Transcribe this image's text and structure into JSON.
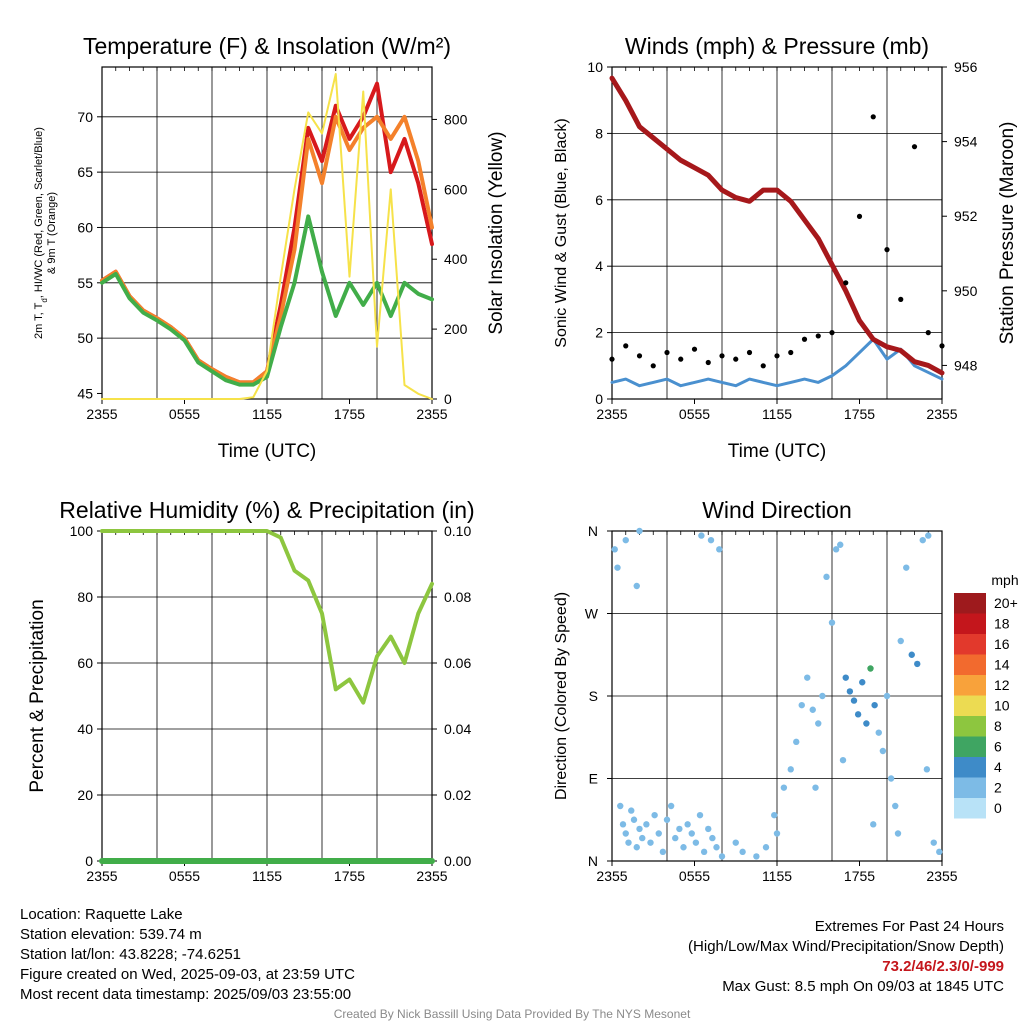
{
  "chart_data": [
    {
      "type": "line",
      "title": "Temperature (F) & Insolation (W/m²)",
      "xlabel": "Time (UTC)",
      "ylabel": "2m T, Td, HI/WC (Red, Green, Scarlet/Blue) & 9m T (Orange)",
      "ylabel_line1": "2m T, T",
      "ylabel_sub": "d",
      "ylabel_line1b": ", HI/WC (Red, Green, Scarlet/Blue)",
      "ylabel_line2": "& 9m T (Orange)",
      "y2label": "Solar Insolation (Yellow)",
      "x_ticks": [
        "2355",
        "0555",
        "1155",
        "1755",
        "2355"
      ],
      "ylim": [
        44.5,
        74.5
      ],
      "y_ticks": [
        45,
        50,
        55,
        60,
        65,
        70
      ],
      "y2lim": [
        0,
        950
      ],
      "y2_ticks": [
        0,
        200,
        400,
        600,
        800
      ],
      "grid": true,
      "x_hours": [
        0,
        1,
        2,
        3,
        4,
        5,
        6,
        7,
        8,
        9,
        10,
        11,
        12,
        13,
        14,
        15,
        16,
        17,
        18,
        19,
        20,
        21,
        22,
        23,
        24
      ],
      "series": [
        {
          "name": "2m T",
          "color": "#d7191c",
          "values": [
            55.2,
            56,
            53.8,
            52.5,
            51.8,
            51,
            50,
            48,
            47.2,
            46.5,
            46,
            46,
            47,
            53,
            60,
            69,
            66,
            71,
            68,
            70,
            73,
            65,
            68,
            64,
            58.5
          ]
        },
        {
          "name": "9m T",
          "color": "#f4812b",
          "values": [
            55.2,
            56,
            53.8,
            52.5,
            51.8,
            51,
            50,
            48,
            47.2,
            46.5,
            46,
            46,
            47,
            52,
            58,
            68,
            64,
            70,
            67,
            69,
            70,
            68,
            70,
            66,
            60
          ]
        },
        {
          "name": "Td",
          "color": "#41ad49",
          "values": [
            55,
            55.8,
            53.6,
            52.3,
            51.6,
            50.8,
            49.8,
            47.8,
            47,
            46.2,
            45.8,
            45.8,
            46.5,
            51,
            55,
            61,
            56,
            52,
            55,
            53,
            55,
            52,
            55,
            54,
            53.5
          ]
        },
        {
          "name": "Solar Insolation",
          "color": "#f6e24a",
          "axis": "y2",
          "values": [
            0,
            0,
            0,
            0,
            0,
            0,
            0,
            0,
            0,
            0,
            0,
            5,
            80,
            350,
            600,
            820,
            760,
            930,
            350,
            880,
            150,
            600,
            40,
            15,
            0
          ]
        }
      ]
    },
    {
      "type": "line",
      "title": "Winds (mph) & Pressure (mb)",
      "xlabel": "Time (UTC)",
      "ylabel": "Sonic Wind & Gust (Blue, Black)",
      "y2label": "Station Pressure (Maroon)",
      "x_ticks": [
        "2355",
        "0555",
        "1155",
        "1755",
        "2355"
      ],
      "ylim": [
        0,
        10
      ],
      "y_ticks": [
        0,
        2,
        4,
        6,
        8,
        10
      ],
      "y2lim": [
        947.1,
        956
      ],
      "y2_ticks": [
        948,
        950,
        952,
        954,
        956
      ],
      "grid": true,
      "x_hours": [
        0,
        1,
        2,
        3,
        4,
        5,
        6,
        7,
        8,
        9,
        10,
        11,
        12,
        13,
        14,
        15,
        16,
        17,
        18,
        19,
        20,
        21,
        22,
        23,
        24
      ],
      "series": [
        {
          "name": "Sonic Wind",
          "color": "#4a90cf",
          "values": [
            0.5,
            0.6,
            0.4,
            0.5,
            0.6,
            0.4,
            0.5,
            0.6,
            0.5,
            0.4,
            0.6,
            0.5,
            0.4,
            0.5,
            0.6,
            0.5,
            0.7,
            1.0,
            1.4,
            1.8,
            1.2,
            1.5,
            1.0,
            0.8,
            0.6
          ]
        },
        {
          "name": "Station Pressure",
          "color": "#a6181b",
          "axis": "y2",
          "values": [
            955.7,
            955.1,
            954.4,
            954.1,
            953.8,
            953.5,
            953.3,
            953.1,
            952.7,
            952.5,
            952.4,
            952.7,
            952.7,
            952.4,
            951.9,
            951.4,
            950.7,
            950.0,
            949.2,
            948.7,
            948.5,
            948.4,
            948.1,
            948.0,
            947.8
          ]
        },
        {
          "name": "Gust",
          "color": "#000000",
          "values": [
            1.2,
            1.6,
            1.3,
            1.0,
            1.4,
            1.2,
            1.5,
            1.1,
            1.3,
            1.2,
            1.4,
            1.0,
            1.3,
            1.4,
            1.8,
            1.9,
            2.0,
            3.5,
            5.5,
            8.5,
            4.5,
            3.0,
            7.6,
            2.0,
            1.6
          ]
        }
      ]
    },
    {
      "type": "line",
      "title": "Relative Humidity (%) & Precipitation (in)",
      "ylabel": "Percent & Precipitation",
      "x_ticks": [
        "2355",
        "0555",
        "1155",
        "1755",
        "2355"
      ],
      "ylim": [
        0,
        100
      ],
      "y_ticks": [
        0,
        20,
        40,
        60,
        80,
        100
      ],
      "y2lim": [
        0,
        0.1
      ],
      "y2_ticks": [
        "0.00",
        "0.02",
        "0.04",
        "0.06",
        "0.08",
        "0.10"
      ],
      "grid": true,
      "x_hours": [
        0,
        1,
        2,
        3,
        4,
        5,
        6,
        7,
        8,
        9,
        10,
        11,
        12,
        13,
        14,
        15,
        16,
        17,
        18,
        19,
        20,
        21,
        22,
        23,
        24
      ],
      "series": [
        {
          "name": "Relative Humidity",
          "color": "#8dc63f",
          "values": [
            100,
            100,
            100,
            100,
            100,
            100,
            100,
            100,
            100,
            100,
            100,
            100,
            100,
            98,
            88,
            85,
            75,
            52,
            55,
            48,
            62,
            68,
            60,
            75,
            84
          ]
        },
        {
          "name": "Precipitation",
          "color": "#41ad49",
          "axis": "y2",
          "values": [
            0,
            0,
            0,
            0,
            0,
            0,
            0,
            0,
            0,
            0,
            0,
            0,
            0,
            0,
            0,
            0,
            0,
            0,
            0,
            0,
            0,
            0,
            0,
            0,
            0
          ]
        }
      ]
    },
    {
      "type": "scatter",
      "title": "Wind Direction",
      "ylabel": "Direction (Colored By Speed)",
      "x_ticks": [
        "2355",
        "0555",
        "1155",
        "1755",
        "2355"
      ],
      "y_ticks": [
        "N",
        "E",
        "S",
        "W",
        "N"
      ],
      "ylim": [
        0,
        360
      ],
      "colorbar": {
        "title": "mph",
        "labels": [
          "20+",
          "18",
          "16",
          "14",
          "12",
          "10",
          "8",
          "6",
          "4",
          "2",
          "0"
        ],
        "colors": [
          "#9e1a1d",
          "#c4161c",
          "#e2392c",
          "#f26a2e",
          "#f8a23b",
          "#ecdb52",
          "#8dc63f",
          "#3fa562",
          "#3e8bc8",
          "#7dbbe6",
          "#b8e2f7"
        ]
      },
      "points": [
        [
          0.2,
          340,
          1
        ],
        [
          0.4,
          320,
          1
        ],
        [
          0.6,
          60,
          1
        ],
        [
          0.8,
          40,
          1
        ],
        [
          1.0,
          30,
          1
        ],
        [
          1.2,
          20,
          1
        ],
        [
          1.4,
          55,
          1
        ],
        [
          1.6,
          45,
          1
        ],
        [
          1.8,
          15,
          1
        ],
        [
          2.0,
          35,
          1
        ],
        [
          2.2,
          25,
          1
        ],
        [
          2.5,
          40,
          1
        ],
        [
          2.8,
          20,
          1
        ],
        [
          3.1,
          50,
          1
        ],
        [
          3.4,
          30,
          1
        ],
        [
          3.7,
          10,
          1
        ],
        [
          4.0,
          45,
          1
        ],
        [
          4.3,
          60,
          1
        ],
        [
          4.6,
          25,
          1
        ],
        [
          4.9,
          35,
          1
        ],
        [
          5.2,
          15,
          1
        ],
        [
          5.5,
          40,
          1
        ],
        [
          5.8,
          30,
          1
        ],
        [
          6.1,
          20,
          1
        ],
        [
          6.4,
          50,
          1
        ],
        [
          6.7,
          10,
          1
        ],
        [
          7.0,
          35,
          1
        ],
        [
          7.3,
          25,
          1
        ],
        [
          7.6,
          15,
          1
        ],
        [
          8.0,
          5,
          1
        ],
        [
          2.0,
          360,
          1
        ],
        [
          1.0,
          350,
          1
        ],
        [
          1.8,
          300,
          1
        ],
        [
          6.5,
          355,
          1
        ],
        [
          7.2,
          350,
          1
        ],
        [
          7.8,
          340,
          1
        ],
        [
          9.0,
          20,
          1
        ],
        [
          9.5,
          10,
          1
        ],
        [
          10.5,
          5,
          1
        ],
        [
          11.2,
          15,
          1
        ],
        [
          12.0,
          30,
          1
        ],
        [
          12.5,
          80,
          1
        ],
        [
          13.0,
          100,
          1
        ],
        [
          13.4,
          130,
          1
        ],
        [
          13.8,
          170,
          1
        ],
        [
          14.2,
          200,
          1
        ],
        [
          14.6,
          165,
          1
        ],
        [
          15.0,
          150,
          1
        ],
        [
          15.3,
          180,
          1
        ],
        [
          15.6,
          310,
          1
        ],
        [
          16.0,
          260,
          1
        ],
        [
          16.3,
          340,
          1
        ],
        [
          16.6,
          345,
          1
        ],
        [
          17.0,
          200,
          2
        ],
        [
          17.3,
          185,
          2
        ],
        [
          17.6,
          175,
          2
        ],
        [
          17.9,
          160,
          2
        ],
        [
          18.2,
          195,
          2
        ],
        [
          18.5,
          150,
          2
        ],
        [
          18.8,
          210,
          3
        ],
        [
          19.1,
          170,
          2
        ],
        [
          19.4,
          140,
          1
        ],
        [
          19.7,
          120,
          1
        ],
        [
          20.0,
          180,
          1
        ],
        [
          20.3,
          90,
          1
        ],
        [
          20.6,
          60,
          1
        ],
        [
          21.0,
          240,
          1
        ],
        [
          21.4,
          320,
          1
        ],
        [
          21.8,
          225,
          2
        ],
        [
          22.2,
          215,
          2
        ],
        [
          22.6,
          350,
          1
        ],
        [
          23.0,
          355,
          1
        ],
        [
          23.4,
          20,
          1
        ],
        [
          23.8,
          10,
          1
        ],
        [
          14.8,
          80,
          1
        ],
        [
          16.8,
          110,
          1
        ],
        [
          19.0,
          40,
          1
        ],
        [
          20.8,
          30,
          1
        ],
        [
          22.9,
          100,
          1
        ],
        [
          11.8,
          50,
          1
        ]
      ]
    }
  ],
  "info": {
    "location": "Location: Raquette Lake",
    "elevation": "Station elevation: 539.74 m",
    "latlon": "Station lat/lon: 43.8228; -74.6251",
    "created": "Figure created on Wed, 2025-09-03, at 23:59 UTC",
    "recent": "Most recent data timestamp: 2025/09/03 23:55:00"
  },
  "extremes": {
    "title": "Extremes For Past 24 Hours",
    "legend": "(High/Low/Max Wind/Precipitation/Snow Depth)",
    "values": "73.2/46/2.3/0/-999",
    "gust": "Max Gust: 8.5 mph On 09/03 at 1845 UTC"
  },
  "credit": "Created By Nick Bassill Using Data Provided By The NYS Mesonet"
}
